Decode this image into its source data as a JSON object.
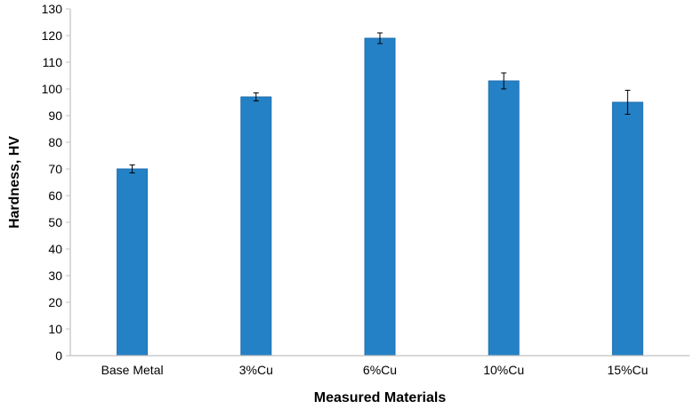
{
  "chart_data": {
    "type": "bar",
    "title": "",
    "xlabel": "Measured Materials",
    "ylabel": "Hardness, HV",
    "categories": [
      "Base Metal",
      "3%Cu",
      "6%Cu",
      "10%Cu",
      "15%Cu"
    ],
    "values": [
      70,
      97,
      119,
      103,
      95
    ],
    "error": [
      1.5,
      1.5,
      2,
      3,
      4.5
    ],
    "ylim": [
      0,
      130
    ],
    "yticks": [
      "0",
      "10",
      "20",
      "30",
      "40",
      "50",
      "60",
      "70",
      "80",
      "90",
      "100",
      "110",
      "120",
      "130"
    ],
    "grid": false,
    "legend": "none",
    "bar_color": "#2481C6",
    "bar_edge_color": "#1F6FAE",
    "axis_color": "#C0C0C0",
    "text_color": "#000000"
  }
}
